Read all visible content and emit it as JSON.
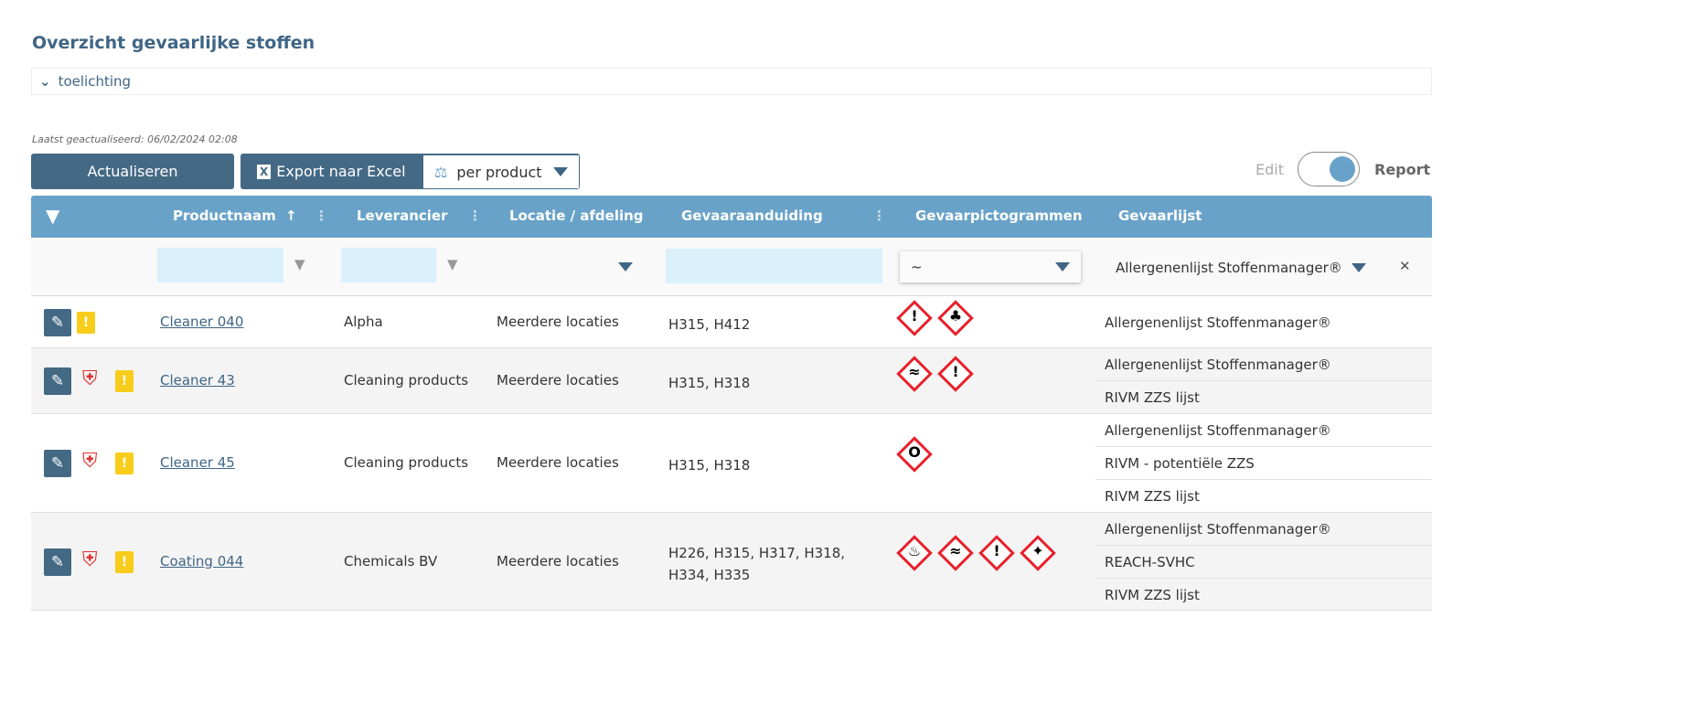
{
  "title": "Overzicht gevaarlijke stoffen",
  "toelichting": "toelichting",
  "last_updated": "Laatst geactualiseerd: 06/02/2024 02:08",
  "toolbar": {
    "refresh": "Actualiseren",
    "export": "Export naar Excel",
    "per": "per product",
    "edit": "Edit",
    "report": "Report",
    "mode": "Report"
  },
  "columns": [
    "Productnaam",
    "Leverancier",
    "Locatie / afdeling",
    "Gevaaraanduiding",
    "Gevaarpictogrammen",
    "Gevaarlijst"
  ],
  "sort_indicator": "↑",
  "filters": {
    "pictogram": "~",
    "gevaarlijst": "Allergenenlijst Stoffenmanager®"
  },
  "colors": {
    "header": "#68a2c8",
    "primary": "#446985",
    "pictogram": "#e8202a"
  },
  "rows": [
    {
      "product": "Cleaner 040",
      "supplier": "Alpha",
      "location": "Meerdere locaties",
      "hazard": "H315, H412",
      "pictograms": [
        "exclamation",
        "environment"
      ],
      "lists": [
        "Allergenenlijst Stoffenmanager®"
      ],
      "shield": false
    },
    {
      "product": "Cleaner 43",
      "supplier": "Cleaning products",
      "location": "Meerdere locaties",
      "hazard": "H315, H318",
      "pictograms": [
        "corrosive",
        "exclamation"
      ],
      "lists": [
        "Allergenenlijst Stoffenmanager®",
        "RIVM ZZS lijst"
      ],
      "shield": true
    },
    {
      "product": "Cleaner 45",
      "supplier": "Cleaning products",
      "location": "Meerdere locaties",
      "hazard": "H315, H318",
      "pictograms": [
        "oxidizer"
      ],
      "lists": [
        "Allergenenlijst Stoffenmanager®",
        "RIVM - potentiële ZZS",
        "RIVM ZZS lijst"
      ],
      "shield": true
    },
    {
      "product": "Coating 044",
      "supplier": "Chemicals BV",
      "location": "Meerdere locaties",
      "hazard": "H226, H315, H317, H318, H334, H335",
      "pictograms": [
        "flammable",
        "corrosive",
        "exclamation",
        "health-hazard"
      ],
      "lists": [
        "Allergenenlijst Stoffenmanager®",
        "REACH-SVHC",
        "RIVM ZZS lijst"
      ],
      "shield": true
    }
  ]
}
